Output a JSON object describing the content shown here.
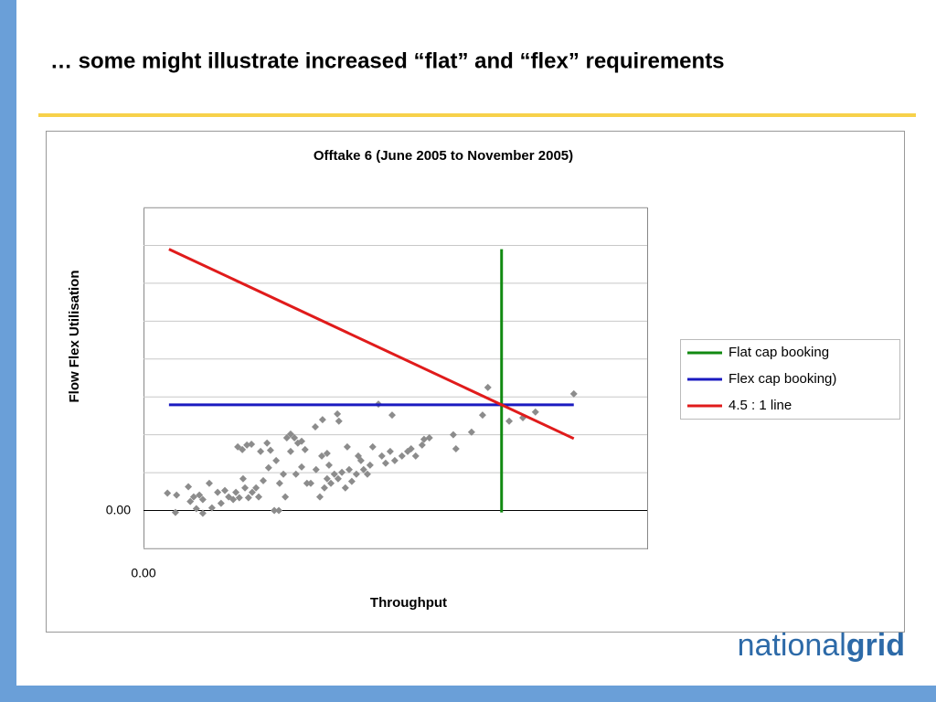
{
  "slide_title": "… some might illustrate increased “flat” and “flex” requirements",
  "logo": [
    "national",
    "grid"
  ],
  "chart_data": {
    "type": "scatter",
    "title": "Offtake 6 (June 2005 to November 2005)",
    "xlabel": "Throughput",
    "ylabel": "Flow Flex Utilisation",
    "xlim": [
      0,
      13.25
    ],
    "ylim": [
      -1,
      8
    ],
    "xticks": [
      {
        "value": 0,
        "label": "0.00"
      }
    ],
    "yticks": [
      {
        "value": -1,
        "label": null
      },
      {
        "value": 0,
        "label": "0.00"
      },
      {
        "value": 1,
        "label": null
      },
      {
        "value": 2,
        "label": null
      },
      {
        "value": 3,
        "label": null
      },
      {
        "value": 4,
        "label": null
      },
      {
        "value": 5,
        "label": null
      },
      {
        "value": 6,
        "label": null
      },
      {
        "value": 7,
        "label": null
      },
      {
        "value": 8,
        "label": null
      }
    ],
    "grid": true,
    "legend": "right",
    "series": [
      {
        "type": "scatter",
        "color": "#8c8c8c",
        "x": [
          0.63,
          0.87,
          0.84,
          1.18,
          1.23,
          1.32,
          1.39,
          1.47,
          1.56,
          1.56,
          1.73,
          1.8,
          1.95,
          2.04,
          2.14,
          2.24,
          2.36,
          2.43,
          2.52,
          2.62,
          2.67,
          2.76,
          2.86,
          2.96,
          3.03,
          2.48,
          2.6,
          2.72,
          2.84,
          3.08,
          3.25,
          3.34,
          3.44,
          3.56,
          3.49,
          3.58,
          3.68,
          3.73,
          3.77,
          3.87,
          3.97,
          4.06,
          4.16,
          3.87,
          4.01,
          4.16,
          4.25,
          4.4,
          4.52,
          4.71,
          4.64,
          4.76,
          4.83,
          4.88,
          4.93,
          5.02,
          5.12,
          5.22,
          5.31,
          5.41,
          5.48,
          5.6,
          5.72,
          5.79,
          5.89,
          5.96,
          5.14,
          5.1,
          5.36,
          5.65,
          6.03,
          6.18,
          6.27,
          6.37,
          6.49,
          6.54,
          6.61,
          6.8,
          6.95,
          7.04,
          7.16,
          7.33,
          7.38,
          7.52,
          8.15,
          8.22,
          8.63,
          8.92,
          9.06,
          9.62,
          9.98,
          10.31,
          11.32,
          4.69,
          4.83,
          4.54,
          4.3,
          3.29,
          3.15
        ],
        "y": [
          0.46,
          0.41,
          -0.05,
          0.63,
          0.24,
          0.36,
          0.05,
          0.41,
          0.29,
          -0.07,
          0.72,
          0.07,
          0.48,
          0.19,
          0.53,
          0.36,
          0.29,
          0.48,
          0.34,
          0.84,
          0.6,
          0.34,
          0.48,
          0.6,
          0.36,
          1.68,
          1.61,
          1.73,
          1.75,
          1.56,
          1.78,
          1.59,
          0.0,
          0.0,
          1.32,
          0.72,
          0.96,
          0.36,
          1.92,
          2.02,
          1.92,
          1.78,
          1.83,
          1.56,
          0.96,
          1.15,
          1.61,
          0.72,
          2.21,
          2.4,
          0.36,
          0.6,
          0.84,
          1.2,
          0.72,
          0.96,
          0.84,
          1.01,
          0.6,
          1.08,
          0.77,
          0.96,
          1.32,
          1.08,
          0.96,
          1.2,
          2.36,
          2.55,
          1.68,
          1.44,
          1.68,
          2.81,
          1.44,
          1.25,
          1.56,
          2.52,
          1.32,
          1.44,
          1.56,
          1.63,
          1.44,
          1.73,
          1.88,
          1.92,
          2.0,
          1.63,
          2.07,
          2.52,
          3.25,
          2.36,
          2.45,
          2.6,
          3.08,
          1.44,
          1.51,
          1.08,
          0.72,
          1.13,
          0.79
        ]
      },
      {
        "type": "line",
        "name": "Flat cap booking",
        "color": "#118a11",
        "x": [
          9.42,
          9.42
        ],
        "y": [
          -0.05,
          6.9
        ]
      },
      {
        "type": "line",
        "name": "Flex cap booking)",
        "color": "#1a1ac0",
        "x": [
          0.67,
          11.32
        ],
        "y": [
          2.79,
          2.79
        ]
      },
      {
        "type": "line",
        "name": "4.5 : 1 line",
        "color": "#e01b1b",
        "x": [
          0.67,
          11.32
        ],
        "y": [
          6.9,
          1.9
        ]
      }
    ]
  }
}
